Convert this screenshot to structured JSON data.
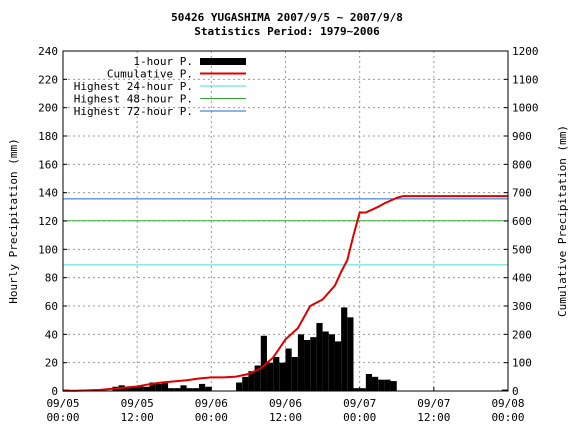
{
  "chart_data": {
    "type": "bar",
    "title": "50426 YUGASHIMA  2007/9/5 ~ 2007/9/8",
    "subtitle": "Statistics Period: 1979~2006",
    "ylabel": "Hourly Precipitation (mm)",
    "y2label": "Cumulative Precipitation (mm)",
    "xlabel": "",
    "ylim": [
      0,
      240
    ],
    "y2lim": [
      0,
      1200
    ],
    "xlim": [
      0,
      72
    ],
    "grid": true,
    "legend_position": "top-left",
    "x_ticks": [
      {
        "x": 0,
        "label": [
          "09/05",
          "00:00"
        ]
      },
      {
        "x": 12,
        "label": [
          "09/05",
          "12:00"
        ]
      },
      {
        "x": 24,
        "label": [
          "09/06",
          "00:00"
        ]
      },
      {
        "x": 36,
        "label": [
          "09/06",
          "12:00"
        ]
      },
      {
        "x": 48,
        "label": [
          "09/07",
          "00:00"
        ]
      },
      {
        "x": 60,
        "label": [
          "09/07",
          "12:00"
        ]
      },
      {
        "x": 72,
        "label": [
          "09/08",
          "00:00"
        ]
      }
    ],
    "y_ticks": [
      0,
      20,
      40,
      60,
      80,
      100,
      120,
      140,
      160,
      180,
      200,
      220,
      240
    ],
    "y2_ticks": [
      0,
      100,
      200,
      300,
      400,
      500,
      600,
      700,
      800,
      900,
      1000,
      1100,
      1200
    ],
    "series": [
      {
        "name": "1-hour P.",
        "kind": "bar",
        "axis": "left",
        "color": "#000000",
        "values": [
          1,
          0,
          0,
          0,
          0,
          0,
          0,
          0,
          3,
          4,
          2,
          3,
          4,
          3,
          6,
          5,
          6,
          2,
          2,
          4,
          2,
          2,
          5,
          3,
          0,
          0,
          0,
          0,
          6,
          10,
          14,
          18,
          39,
          20,
          24,
          20,
          30,
          24,
          40,
          36,
          38,
          48,
          42,
          40,
          35,
          59,
          52,
          2,
          2,
          12,
          10,
          8,
          8,
          7,
          0,
          0,
          0,
          0,
          0,
          0,
          0,
          0,
          0,
          0,
          0,
          0,
          0,
          0,
          0,
          0,
          0,
          1
        ]
      },
      {
        "name": "Cumulative P.",
        "kind": "line",
        "axis": "right",
        "color": "#dd0000",
        "x": [
          0,
          2,
          4,
          6,
          8,
          10,
          12,
          14,
          16,
          18,
          20,
          22,
          24,
          26,
          28,
          30,
          32,
          34,
          36,
          38,
          40,
          42,
          44,
          45,
          46,
          47,
          48,
          49,
          50,
          51,
          52,
          53,
          54,
          55,
          56,
          58,
          60,
          62,
          64,
          66,
          68,
          70,
          72
        ],
        "y": [
          1,
          1,
          2,
          4,
          8,
          12,
          16,
          24,
          30,
          34,
          38,
          44,
          48,
          48,
          51,
          60,
          80,
          118,
          182,
          222,
          300,
          323,
          372,
          420,
          462,
          550,
          630,
          630,
          640,
          650,
          662,
          672,
          682,
          688,
          688,
          688,
          688,
          688,
          688,
          688,
          688,
          688,
          688
        ]
      },
      {
        "name": "Highest 24-hour P.",
        "kind": "hline",
        "axis": "right",
        "color": "#44dddd",
        "value": 445
      },
      {
        "name": "Highest 48-hour P.",
        "kind": "hline",
        "axis": "right",
        "color": "#33aa33",
        "value": 601
      },
      {
        "name": "Highest 72-hour P.",
        "kind": "hline",
        "axis": "right",
        "color": "#2266cc",
        "value": 678
      }
    ]
  }
}
